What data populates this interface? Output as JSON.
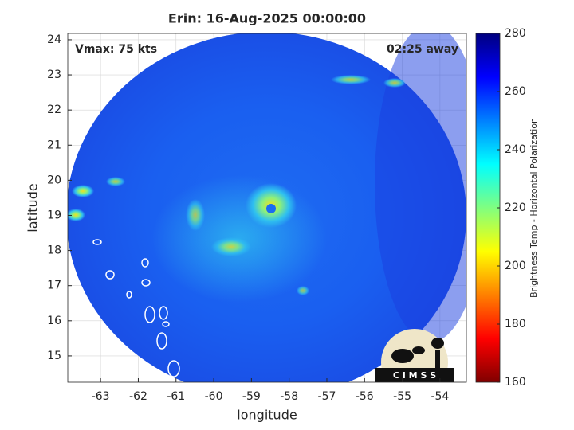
{
  "chart_data": {
    "type": "image",
    "title": "Erin: 16-Aug-2025 00:00:00",
    "annotations": [
      "Vmax: 75 kts",
      "02:25 away"
    ],
    "xlabel": "longitude",
    "ylabel": "latitude",
    "xlim": [
      -63.87,
      -53.3
    ],
    "ylim": [
      14.25,
      24.18
    ],
    "xticks": [
      -63,
      -62,
      -61,
      -60,
      -59,
      -58,
      -57,
      -56,
      -55,
      -54
    ],
    "yticks": [
      15,
      16,
      17,
      18,
      19,
      20,
      21,
      22,
      23,
      24
    ],
    "grid": true,
    "colormap": "jet",
    "clim": [
      160,
      280
    ],
    "cticks": [
      160,
      180,
      200,
      220,
      240,
      260,
      280
    ],
    "clabel": "Brightness Temp - Horizontal Polarization",
    "logo": "C I M S S"
  }
}
